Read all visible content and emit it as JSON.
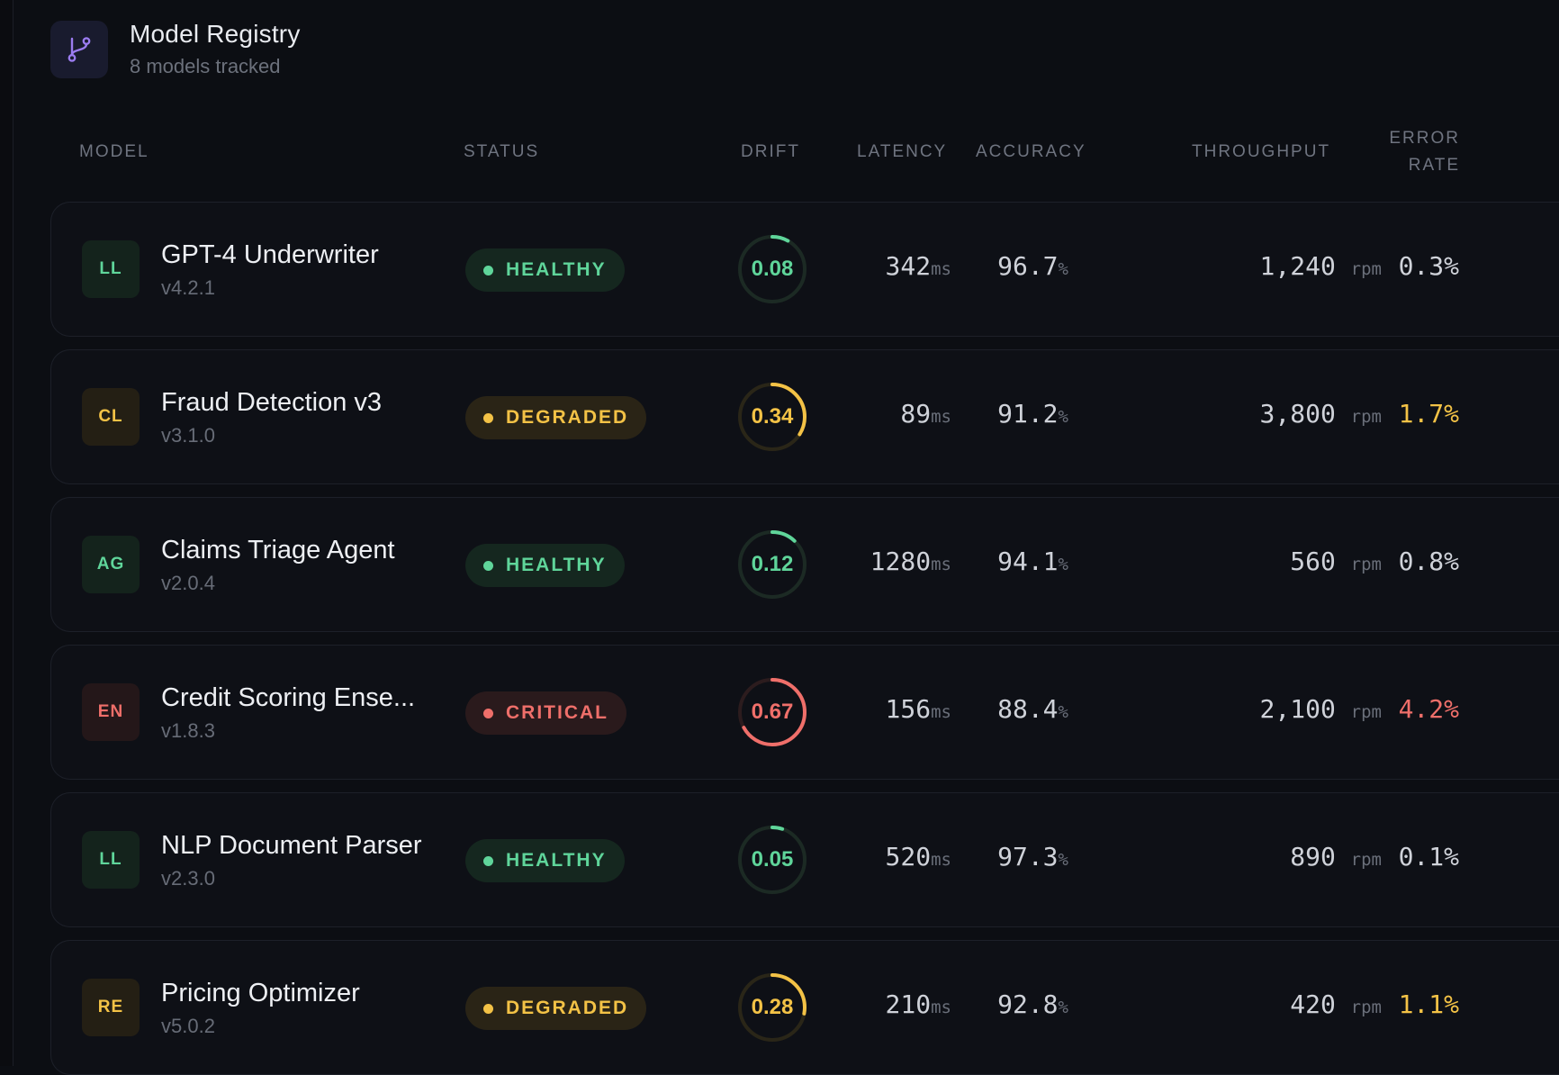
{
  "header": {
    "title": "Model Registry",
    "subtitle": "8 models tracked",
    "icon": "git-branch-icon"
  },
  "columns": {
    "model": "MODEL",
    "status": "STATUS",
    "drift": "DRIFT",
    "latency": "LATENCY",
    "accuracy": "ACCURACY",
    "throughput": "THROUGHPUT",
    "error_rate_line1": "ERROR",
    "error_rate_line2": "RATE"
  },
  "colors": {
    "healthy": "#5fd59a",
    "degraded": "#f3c246",
    "critical": "#ef6f6a",
    "neutral_text": "#cfd2d9"
  },
  "models": [
    {
      "initials": "LL",
      "name": "GPT-4 Underwriter",
      "version": "v4.2.1",
      "status": "HEALTHY",
      "drift": "0.08",
      "latency": "342",
      "latency_unit": "ms",
      "accuracy": "96.7",
      "accuracy_unit": "%",
      "throughput": "1,240",
      "throughput_unit": "rpm",
      "error_rate": "0.3%"
    },
    {
      "initials": "CL",
      "name": "Fraud Detection v3",
      "version": "v3.1.0",
      "status": "DEGRADED",
      "drift": "0.34",
      "latency": "89",
      "latency_unit": "ms",
      "accuracy": "91.2",
      "accuracy_unit": "%",
      "throughput": "3,800",
      "throughput_unit": "rpm",
      "error_rate": "1.7%"
    },
    {
      "initials": "AG",
      "name": "Claims Triage Agent",
      "version": "v2.0.4",
      "status": "HEALTHY",
      "drift": "0.12",
      "latency": "1280",
      "latency_unit": "ms",
      "accuracy": "94.1",
      "accuracy_unit": "%",
      "throughput": "560",
      "throughput_unit": "rpm",
      "error_rate": "0.8%"
    },
    {
      "initials": "EN",
      "name": "Credit Scoring Ense...",
      "version": "v1.8.3",
      "status": "CRITICAL",
      "drift": "0.67",
      "latency": "156",
      "latency_unit": "ms",
      "accuracy": "88.4",
      "accuracy_unit": "%",
      "throughput": "2,100",
      "throughput_unit": "rpm",
      "error_rate": "4.2%"
    },
    {
      "initials": "LL",
      "name": "NLP Document Parser",
      "version": "v2.3.0",
      "status": "HEALTHY",
      "drift": "0.05",
      "latency": "520",
      "latency_unit": "ms",
      "accuracy": "97.3",
      "accuracy_unit": "%",
      "throughput": "890",
      "throughput_unit": "rpm",
      "error_rate": "0.1%"
    },
    {
      "initials": "RE",
      "name": "Pricing Optimizer",
      "version": "v5.0.2",
      "status": "DEGRADED",
      "drift": "0.28",
      "latency": "210",
      "latency_unit": "ms",
      "accuracy": "92.8",
      "accuracy_unit": "%",
      "throughput": "420",
      "throughput_unit": "rpm",
      "error_rate": "1.1%"
    }
  ]
}
